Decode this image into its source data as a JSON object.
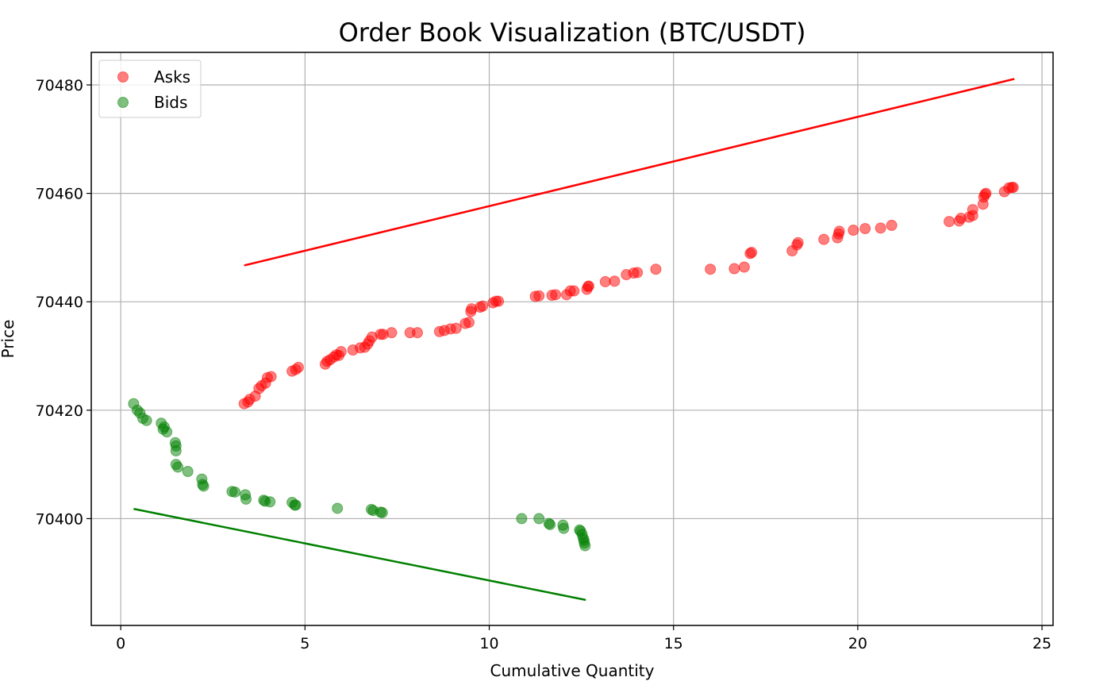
{
  "chart_data": {
    "type": "scatter",
    "title": "Order Book Visualization (BTC/USDT)",
    "xlabel": "Cumulative Quantity",
    "ylabel": "Price",
    "xlim": [
      -0.8,
      25.3
    ],
    "ylim": [
      70380.3,
      70486.0
    ],
    "xticks": [
      0,
      5,
      10,
      15,
      20,
      25
    ],
    "yticks": [
      70400,
      70420,
      70440,
      70460,
      70480
    ],
    "grid": true,
    "legend_position": "top-left",
    "series": [
      {
        "name": "Asks",
        "color": "#ff0000",
        "points": [
          [
            3.35,
            70421.2
          ],
          [
            3.45,
            70421.5
          ],
          [
            3.5,
            70422.0
          ],
          [
            3.65,
            70422.6
          ],
          [
            3.75,
            70424.0
          ],
          [
            3.82,
            70424.5
          ],
          [
            3.93,
            70425.0
          ],
          [
            3.98,
            70426.0
          ],
          [
            4.08,
            70426.2
          ],
          [
            4.65,
            70427.2
          ],
          [
            4.75,
            70427.5
          ],
          [
            4.82,
            70427.9
          ],
          [
            5.55,
            70428.5
          ],
          [
            5.6,
            70429.0
          ],
          [
            5.68,
            70429.3
          ],
          [
            5.78,
            70429.8
          ],
          [
            5.85,
            70430.2
          ],
          [
            5.92,
            70430.1
          ],
          [
            5.98,
            70430.8
          ],
          [
            6.3,
            70431.1
          ],
          [
            6.5,
            70431.5
          ],
          [
            6.62,
            70431.6
          ],
          [
            6.7,
            70432.2
          ],
          [
            6.75,
            70432.8
          ],
          [
            6.82,
            70433.5
          ],
          [
            7.05,
            70434.0
          ],
          [
            7.12,
            70434.0
          ],
          [
            7.35,
            70434.3
          ],
          [
            7.85,
            70434.3
          ],
          [
            8.05,
            70434.3
          ],
          [
            8.65,
            70434.5
          ],
          [
            8.78,
            70434.7
          ],
          [
            8.95,
            70435.0
          ],
          [
            9.1,
            70435.1
          ],
          [
            9.35,
            70436.0
          ],
          [
            9.45,
            70436.2
          ],
          [
            9.5,
            70438.2
          ],
          [
            9.52,
            70438.7
          ],
          [
            9.75,
            70439.0
          ],
          [
            9.82,
            70439.2
          ],
          [
            10.1,
            70439.8
          ],
          [
            10.18,
            70440.1
          ],
          [
            10.25,
            70440.1
          ],
          [
            11.25,
            70441.0
          ],
          [
            11.35,
            70441.1
          ],
          [
            11.7,
            70441.2
          ],
          [
            11.8,
            70441.3
          ],
          [
            12.1,
            70441.3
          ],
          [
            12.2,
            70442.0
          ],
          [
            12.3,
            70442.0
          ],
          [
            12.65,
            70442.3
          ],
          [
            12.68,
            70442.8
          ],
          [
            12.7,
            70442.9
          ],
          [
            13.15,
            70443.7
          ],
          [
            13.4,
            70443.8
          ],
          [
            13.72,
            70445.0
          ],
          [
            13.92,
            70445.3
          ],
          [
            14.02,
            70445.4
          ],
          [
            14.52,
            70446.0
          ],
          [
            16.0,
            70446.0
          ],
          [
            16.65,
            70446.1
          ],
          [
            16.92,
            70446.4
          ],
          [
            17.08,
            70448.9
          ],
          [
            17.12,
            70449.1
          ],
          [
            18.22,
            70449.4
          ],
          [
            18.35,
            70450.5
          ],
          [
            18.38,
            70450.9
          ],
          [
            19.08,
            70451.5
          ],
          [
            19.45,
            70451.8
          ],
          [
            19.48,
            70452.5
          ],
          [
            19.5,
            70453.0
          ],
          [
            19.88,
            70453.2
          ],
          [
            20.2,
            70453.5
          ],
          [
            20.62,
            70453.6
          ],
          [
            20.92,
            70454.1
          ],
          [
            22.48,
            70454.8
          ],
          [
            22.75,
            70454.9
          ],
          [
            22.8,
            70455.4
          ],
          [
            23.02,
            70455.6
          ],
          [
            23.12,
            70455.9
          ],
          [
            23.12,
            70457.0
          ],
          [
            23.4,
            70458.0
          ],
          [
            23.42,
            70459.3
          ],
          [
            23.45,
            70459.8
          ],
          [
            23.48,
            70460.0
          ],
          [
            23.98,
            70460.3
          ],
          [
            24.1,
            70461.0
          ],
          [
            24.18,
            70461.1
          ],
          [
            24.22,
            70461.1
          ]
        ]
      },
      {
        "name": "Bids",
        "color": "#008000",
        "points": [
          [
            0.35,
            70421.2
          ],
          [
            0.45,
            70420.0
          ],
          [
            0.52,
            70419.5
          ],
          [
            0.6,
            70418.5
          ],
          [
            0.7,
            70418.1
          ],
          [
            1.1,
            70417.6
          ],
          [
            1.15,
            70416.5
          ],
          [
            1.18,
            70416.9
          ],
          [
            1.25,
            70416.0
          ],
          [
            1.48,
            70414.0
          ],
          [
            1.5,
            70413.4
          ],
          [
            1.5,
            70412.5
          ],
          [
            1.5,
            70410.0
          ],
          [
            1.55,
            70409.5
          ],
          [
            1.82,
            70408.7
          ],
          [
            2.2,
            70407.3
          ],
          [
            2.22,
            70406.3
          ],
          [
            2.25,
            70406.0
          ],
          [
            3.02,
            70405.0
          ],
          [
            3.1,
            70404.9
          ],
          [
            3.38,
            70404.4
          ],
          [
            3.4,
            70403.6
          ],
          [
            3.88,
            70403.4
          ],
          [
            3.92,
            70403.2
          ],
          [
            4.05,
            70403.1
          ],
          [
            4.65,
            70403.0
          ],
          [
            4.72,
            70402.5
          ],
          [
            4.75,
            70402.5
          ],
          [
            5.88,
            70401.9
          ],
          [
            6.8,
            70401.7
          ],
          [
            6.85,
            70401.5
          ],
          [
            7.05,
            70401.2
          ],
          [
            7.1,
            70401.1
          ],
          [
            10.88,
            70400.0
          ],
          [
            11.35,
            70400.0
          ],
          [
            11.62,
            70399.1
          ],
          [
            11.65,
            70398.9
          ],
          [
            12.0,
            70398.8
          ],
          [
            12.02,
            70398.2
          ],
          [
            12.45,
            70397.9
          ],
          [
            12.48,
            70397.7
          ],
          [
            12.52,
            70397.1
          ],
          [
            12.55,
            70396.4
          ],
          [
            12.57,
            70396.0
          ],
          [
            12.58,
            70395.5
          ],
          [
            12.6,
            70395.0
          ]
        ]
      }
    ],
    "lines": [
      {
        "series": "Asks trend",
        "color": "#ff0000",
        "points": [
          [
            3.35,
            70446.7
          ],
          [
            24.25,
            70481.1
          ]
        ]
      },
      {
        "series": "Bids trend",
        "color": "#008000",
        "points": [
          [
            0.35,
            70401.8
          ],
          [
            12.62,
            70385.0
          ]
        ]
      }
    ]
  }
}
